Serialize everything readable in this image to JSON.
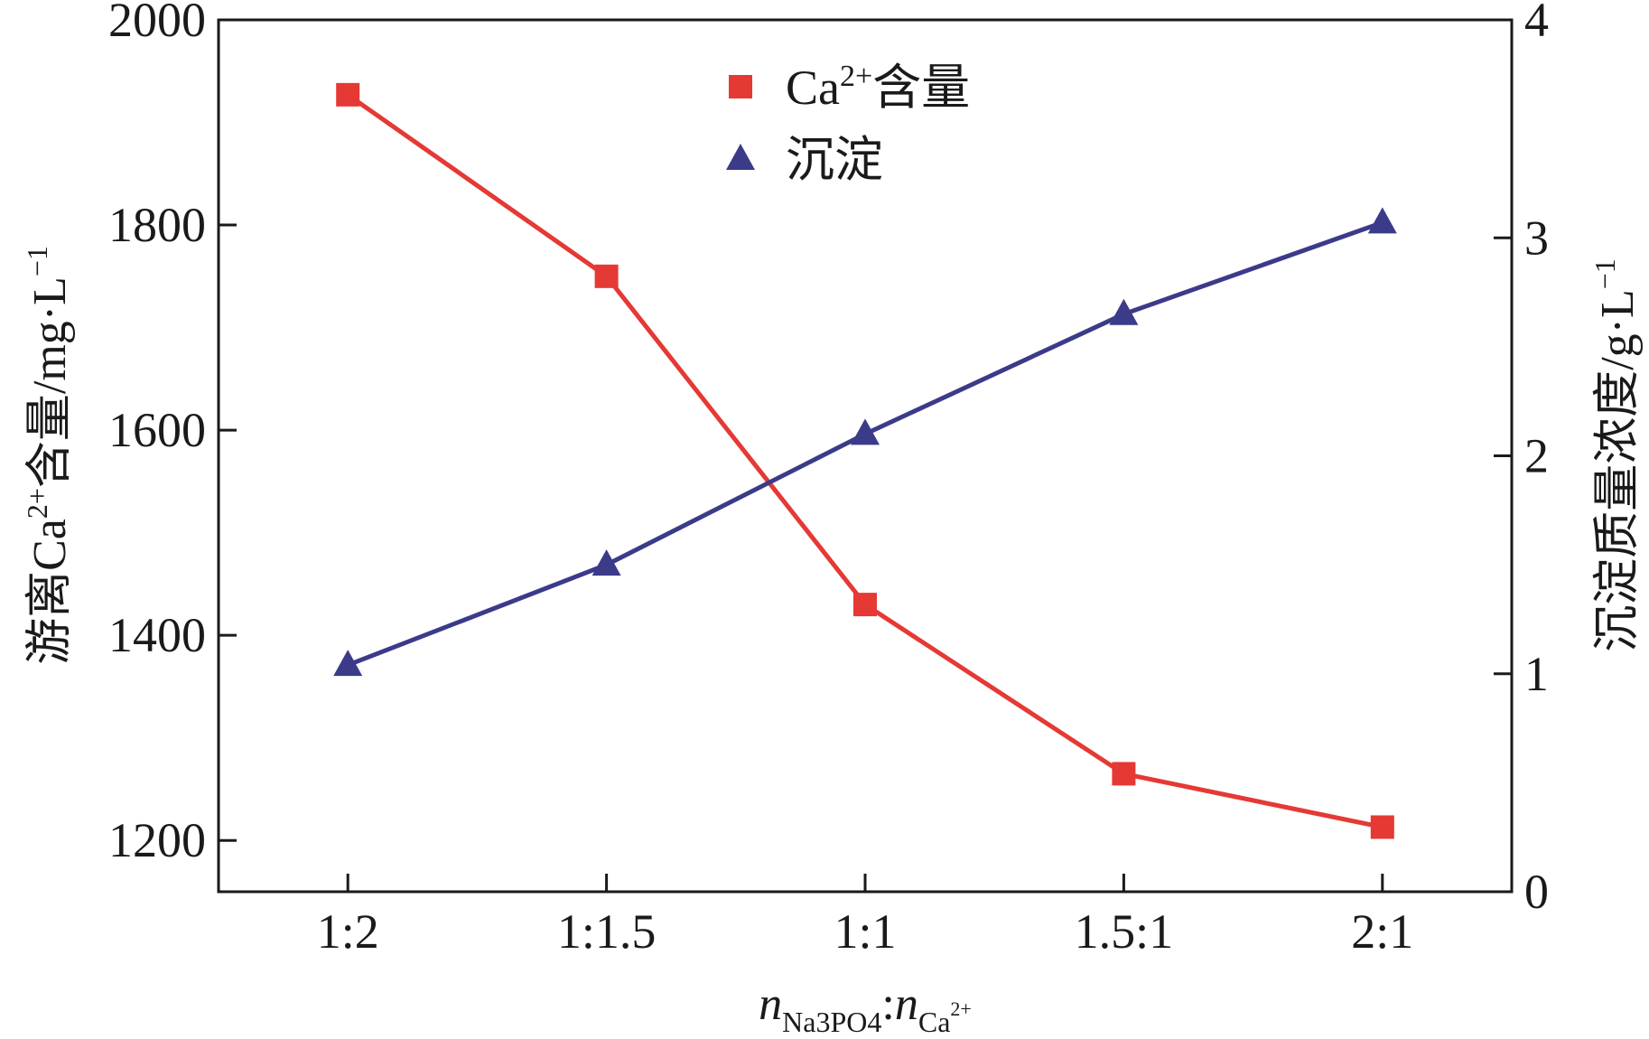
{
  "chart_data": {
    "type": "line",
    "categories": [
      "1:2",
      "1:1.5",
      "1:1",
      "1.5:1",
      "2:1"
    ],
    "xlabel": {
      "n1": "n",
      "sub1": "Na3PO4",
      "sep": ":",
      "n2": "n",
      "sub2": "Ca",
      "sub2_sup": "2+"
    },
    "ylabel_left": {
      "pre": "游离Ca",
      "sup": "2+",
      "post": "含量/mg·L",
      "unit_sup": "−1"
    },
    "ylabel_right": {
      "pre": "沉淀质量浓度/g·L",
      "unit_sup": "−1"
    },
    "ylim_left": [
      1150,
      2000
    ],
    "yticks_left": [
      1200,
      1400,
      1600,
      1800,
      2000
    ],
    "ylim_right": [
      0,
      4
    ],
    "yticks_right": [
      0,
      1,
      2,
      3,
      4
    ],
    "grid": false,
    "legend_position": "top-center",
    "series": [
      {
        "name": {
          "pre": "Ca",
          "sup": "2+",
          "post": "含量"
        },
        "axis": "left",
        "marker": "square",
        "color": "#e53935",
        "values": [
          1927,
          1750,
          1430,
          1265,
          1213
        ]
      },
      {
        "name": {
          "pre": "沉淀",
          "sup": "",
          "post": ""
        },
        "axis": "right",
        "marker": "triangle",
        "color": "#3b3b8a",
        "values": [
          1.04,
          1.5,
          2.1,
          2.65,
          3.07
        ]
      }
    ]
  }
}
